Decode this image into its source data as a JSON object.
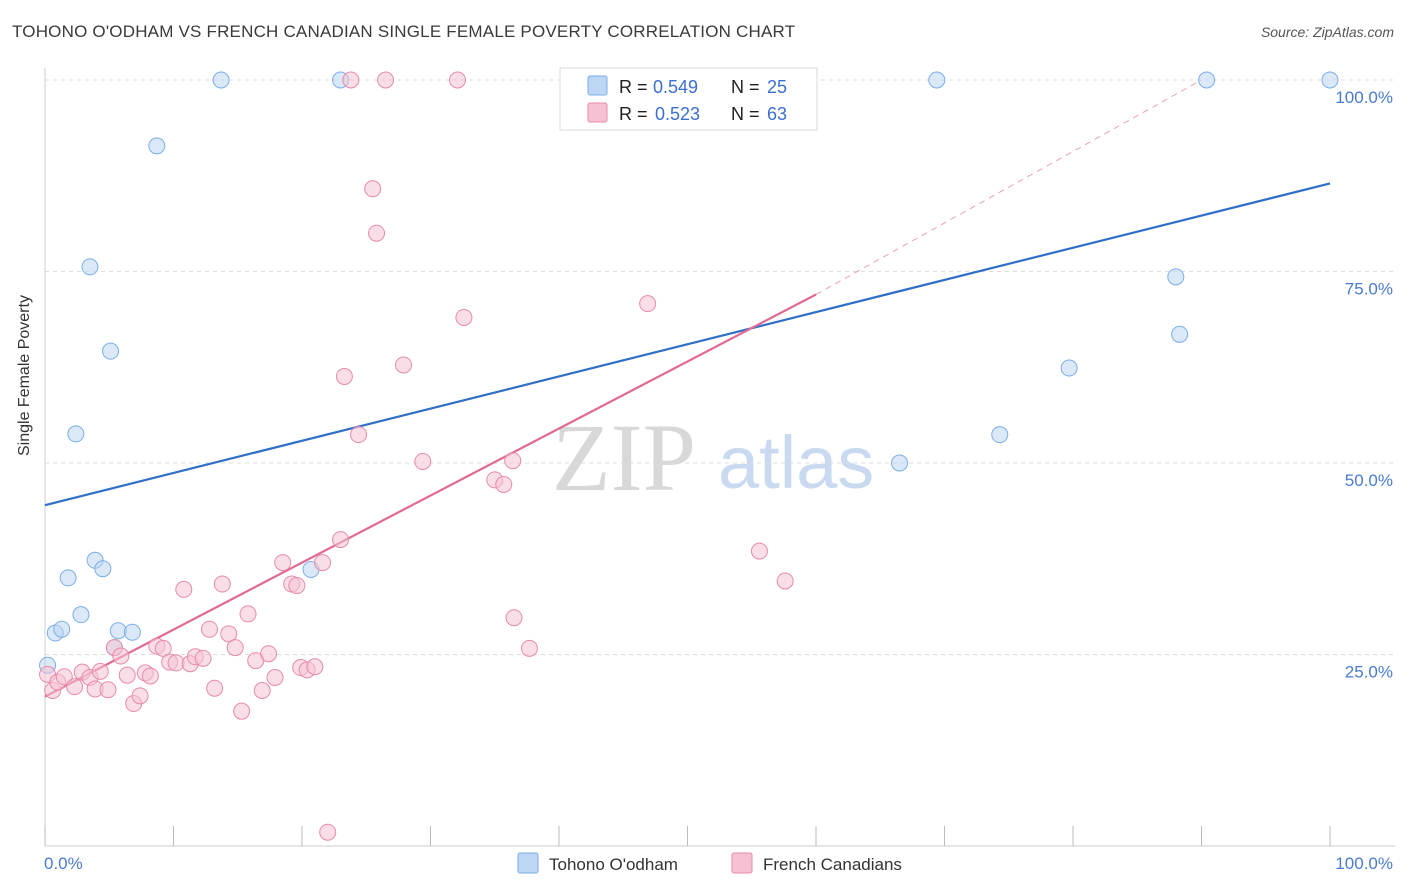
{
  "title": "TOHONO O'ODHAM VS FRENCH CANADIAN SINGLE FEMALE POVERTY CORRELATION CHART",
  "source": "Source: ZipAtlas.com",
  "watermark": {
    "zip": "ZIP",
    "atlas": "atlas"
  },
  "chart_data": {
    "type": "scatter",
    "title": "TOHONO O'ODHAM VS FRENCH CANADIAN SINGLE FEMALE POVERTY CORRELATION CHART",
    "xlabel": "",
    "ylabel": "Single Female Poverty",
    "xlim": [
      0,
      100
    ],
    "ylim": [
      0,
      100
    ],
    "x_tick_labels": [
      "0.0%",
      "100.0%"
    ],
    "y_ticks": [
      25,
      50,
      75,
      100
    ],
    "y_tick_labels": [
      "25.0%",
      "50.0%",
      "75.0%",
      "100.0%"
    ],
    "grid": true,
    "legend_position": "bottom-center",
    "stats_box_position": "top-center",
    "series": [
      {
        "name": "Tohono O'odham",
        "color": "#7aaee8",
        "fill": "#bcd6f3",
        "R": "0.549",
        "N": "25",
        "trend": {
          "x": [
            0,
            100
          ],
          "y": [
            44.5,
            86.5
          ]
        },
        "points": [
          [
            0.2,
            23.6
          ],
          [
            0.8,
            27.8
          ],
          [
            1.3,
            28.3
          ],
          [
            1.8,
            35.0
          ],
          [
            2.4,
            53.8
          ],
          [
            2.8,
            30.2
          ],
          [
            3.5,
            75.6
          ],
          [
            3.9,
            37.3
          ],
          [
            4.5,
            36.2
          ],
          [
            5.1,
            64.6
          ],
          [
            5.4,
            25.9
          ],
          [
            5.7,
            28.1
          ],
          [
            6.8,
            27.9
          ],
          [
            8.7,
            91.4
          ],
          [
            13.7,
            100.0
          ],
          [
            20.7,
            36.1
          ],
          [
            23.0,
            100.0
          ],
          [
            66.5,
            50.0
          ],
          [
            69.4,
            100.0
          ],
          [
            74.3,
            53.7
          ],
          [
            79.7,
            62.4
          ],
          [
            88.0,
            74.3
          ],
          [
            88.3,
            66.8
          ],
          [
            90.4,
            100.0
          ],
          [
            100.0,
            100.0
          ]
        ]
      },
      {
        "name": "French Canadians",
        "color": "#e88aaa",
        "fill": "#f6c2d3",
        "R": "0.523",
        "N": "63",
        "trend": {
          "x": [
            0,
            60
          ],
          "y": [
            19.5,
            72.0
          ]
        },
        "trend_extension": {
          "x": [
            60,
            90
          ],
          "y": [
            72.0,
            100.0
          ]
        },
        "points": [
          [
            0.2,
            22.4
          ],
          [
            0.6,
            20.3
          ],
          [
            1.0,
            21.4
          ],
          [
            1.5,
            22.1
          ],
          [
            2.3,
            20.8
          ],
          [
            2.9,
            22.7
          ],
          [
            3.5,
            22.0
          ],
          [
            3.9,
            20.5
          ],
          [
            4.3,
            22.8
          ],
          [
            4.9,
            20.4
          ],
          [
            5.4,
            25.9
          ],
          [
            5.9,
            24.8
          ],
          [
            6.4,
            22.3
          ],
          [
            6.9,
            18.6
          ],
          [
            7.4,
            19.6
          ],
          [
            7.8,
            22.6
          ],
          [
            8.2,
            22.2
          ],
          [
            8.7,
            26.1
          ],
          [
            9.2,
            25.8
          ],
          [
            9.7,
            24.0
          ],
          [
            10.2,
            23.9
          ],
          [
            10.8,
            33.5
          ],
          [
            11.3,
            23.8
          ],
          [
            11.7,
            24.7
          ],
          [
            12.3,
            24.5
          ],
          [
            12.8,
            28.3
          ],
          [
            13.2,
            20.6
          ],
          [
            13.8,
            34.2
          ],
          [
            14.3,
            27.7
          ],
          [
            14.8,
            25.9
          ],
          [
            15.3,
            17.6
          ],
          [
            15.8,
            30.3
          ],
          [
            16.4,
            24.2
          ],
          [
            16.9,
            20.3
          ],
          [
            17.4,
            25.1
          ],
          [
            17.9,
            22.0
          ],
          [
            18.5,
            37.0
          ],
          [
            19.2,
            34.2
          ],
          [
            19.6,
            34.0
          ],
          [
            19.9,
            23.3
          ],
          [
            20.4,
            23.0
          ],
          [
            21.0,
            23.4
          ],
          [
            21.6,
            37.0
          ],
          [
            22.0,
            1.8
          ],
          [
            23.0,
            40.0
          ],
          [
            23.3,
            61.3
          ],
          [
            23.8,
            100.0
          ],
          [
            24.4,
            53.7
          ],
          [
            25.5,
            85.8
          ],
          [
            25.8,
            80.0
          ],
          [
            26.5,
            100.0
          ],
          [
            27.9,
            62.8
          ],
          [
            29.4,
            50.2
          ],
          [
            32.1,
            100.0
          ],
          [
            32.6,
            69.0
          ],
          [
            35.0,
            47.8
          ],
          [
            35.7,
            47.2
          ],
          [
            36.4,
            50.3
          ],
          [
            36.5,
            29.8
          ],
          [
            37.7,
            25.8
          ],
          [
            46.9,
            70.8
          ],
          [
            55.6,
            38.5
          ],
          [
            57.6,
            34.6
          ]
        ]
      }
    ]
  }
}
